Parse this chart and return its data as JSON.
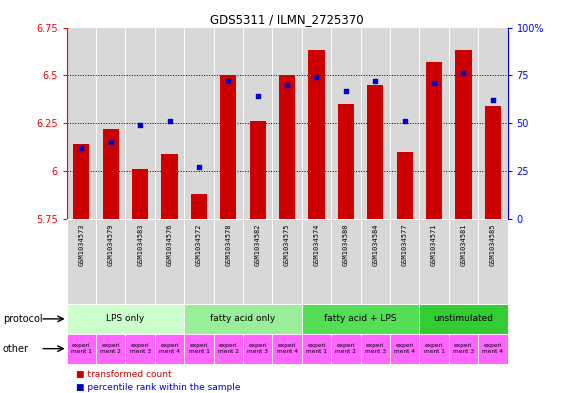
{
  "title": "GDS5311 / ILMN_2725370",
  "samples": [
    "GSM1034573",
    "GSM1034579",
    "GSM1034583",
    "GSM1034576",
    "GSM1034572",
    "GSM1034578",
    "GSM1034582",
    "GSM1034575",
    "GSM1034574",
    "GSM1034580",
    "GSM1034584",
    "GSM1034577",
    "GSM1034571",
    "GSM1034581",
    "GSM1034585"
  ],
  "transformed_count": [
    6.14,
    6.22,
    6.01,
    6.09,
    5.88,
    6.5,
    6.26,
    6.5,
    6.63,
    6.35,
    6.45,
    6.1,
    6.57,
    6.63,
    6.34
  ],
  "percentile_rank": [
    37,
    40,
    49,
    51,
    27,
    72,
    64,
    70,
    74,
    67,
    72,
    51,
    71,
    76,
    62
  ],
  "ylim_left": [
    5.75,
    6.75
  ],
  "ylim_right": [
    0,
    100
  ],
  "yticks_left": [
    5.75,
    6.0,
    6.25,
    6.5,
    6.75
  ],
  "ytick_labels_left": [
    "5.75",
    "6",
    "6.25",
    "6.5",
    "6.75"
  ],
  "yticks_right": [
    0,
    25,
    50,
    75,
    100
  ],
  "ytick_labels_right": [
    "0",
    "25",
    "50",
    "75",
    "100%"
  ],
  "bar_color": "#cc0000",
  "dot_color": "#0000cc",
  "bg_color": "#d8d8d8",
  "protocol_defs": [
    {
      "label": "LPS only",
      "start": 0,
      "end": 4,
      "color": "#ccffcc"
    },
    {
      "label": "fatty acid only",
      "start": 4,
      "end": 8,
      "color": "#99ee99"
    },
    {
      "label": "fatty acid + LPS",
      "start": 8,
      "end": 12,
      "color": "#55dd55"
    },
    {
      "label": "unstimulated",
      "start": 12,
      "end": 15,
      "color": "#33cc33"
    }
  ],
  "other_labels": [
    "experi\nment 1",
    "experi\nment 2",
    "experi\nment 3",
    "experi\nment 4",
    "experi\nment 1",
    "experi\nment 2",
    "experi\nment 3",
    "experi\nment 4",
    "experi\nment 1",
    "experi\nment 2",
    "experi\nment 3",
    "experi\nment 4",
    "experi\nment 1",
    "experi\nment 3",
    "experi\nment 4"
  ],
  "other_cell_color": "#ff66ff",
  "cell_bg": "#d8d8d8",
  "legend_bar_label": "transformed count",
  "legend_dot_label": "percentile rank within the sample"
}
